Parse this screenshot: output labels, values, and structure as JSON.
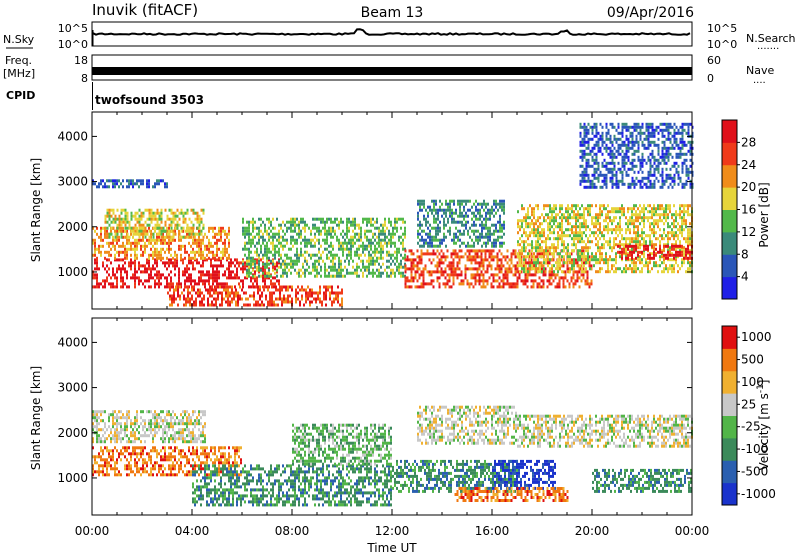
{
  "header": {
    "station": "Inuvik (fitACF)",
    "beam": "Beam 13",
    "date": "09/Apr/2016"
  },
  "side_labels": {
    "nsky": "N.Sky",
    "freq_line1": "Freq.",
    "freq_line2": "[MHz]",
    "cpid": "CPID",
    "nsearch": "N.Search",
    "nave": "Nave",
    "dots_long": "·······",
    "dots_short": "····"
  },
  "noise_panel": {
    "left_ticks": [
      "10^5",
      "10^0"
    ],
    "right_ticks": [
      "10^5",
      "10^0"
    ]
  },
  "freq_panel": {
    "left_ticks": [
      "18",
      "8"
    ],
    "right_ticks": [
      "60",
      "0"
    ]
  },
  "cpid_panel": {
    "text": "twofsound 3503"
  },
  "chart_data": [
    {
      "type": "heatmap",
      "title": "",
      "xlabel": "Time UT",
      "ylabel": "Slant Range [km]",
      "x_ticks": [
        "00:00",
        "04:00",
        "08:00",
        "12:00",
        "16:00",
        "20:00",
        "00:00"
      ],
      "x_range_hours": [
        0,
        24
      ],
      "y_ticks": [
        "1000",
        "2000",
        "3000",
        "4000"
      ],
      "ylim": [
        180,
        4540
      ],
      "colorbar_label": "Power [dB]",
      "colorbar_ticks": [
        "4",
        "8",
        "12",
        "16",
        "20",
        "24",
        "28"
      ],
      "colorbar_range": [
        0,
        32
      ],
      "colors": [
        "#1f1fe6",
        "#2a56b8",
        "#3a8a7a",
        "#52b84a",
        "#e6d43a",
        "#f08c1a",
        "#f03a1a",
        "#e0101a"
      ],
      "regions": [
        {
          "t": [
            0.0,
            7.5
          ],
          "r": [
            700,
            1300
          ],
          "level": 7
        },
        {
          "t": [
            0.0,
            5.5
          ],
          "r": [
            1300,
            2000
          ],
          "level": 5
        },
        {
          "t": [
            0.5,
            4.5
          ],
          "r": [
            1800,
            2400
          ],
          "level": 4
        },
        {
          "t": [
            0.0,
            3.0
          ],
          "r": [
            2900,
            3050
          ],
          "level": 1
        },
        {
          "t": [
            3.0,
            10.0
          ],
          "r": [
            300,
            700
          ],
          "level": 6
        },
        {
          "t": [
            6.0,
            12.5
          ],
          "r": [
            900,
            2200
          ],
          "level": 3
        },
        {
          "t": [
            12.5,
            20.0
          ],
          "r": [
            700,
            1500
          ],
          "level": 6
        },
        {
          "t": [
            13.0,
            16.5
          ],
          "r": [
            1600,
            2600
          ],
          "level": 2
        },
        {
          "t": [
            17.0,
            24.0
          ],
          "r": [
            1000,
            2500
          ],
          "level": 4
        },
        {
          "t": [
            21.0,
            24.0
          ],
          "r": [
            1300,
            1600
          ],
          "level": 7
        },
        {
          "t": [
            19.5,
            24.0
          ],
          "r": [
            2900,
            4300
          ],
          "level": 1
        }
      ]
    },
    {
      "type": "heatmap",
      "title": "",
      "xlabel": "Time UT",
      "ylabel": "Slant Range [km]",
      "x_ticks": [
        "00:00",
        "04:00",
        "08:00",
        "12:00",
        "16:00",
        "20:00",
        "00:00"
      ],
      "x_range_hours": [
        0,
        24
      ],
      "y_ticks": [
        "1000",
        "2000",
        "3000",
        "4000"
      ],
      "ylim": [
        180,
        4540
      ],
      "colorbar_label": "Velocity [m s^-1]",
      "colorbar_ticks": [
        "1000",
        "500",
        "100",
        "25",
        "-25",
        "-100",
        "-500",
        "-1000"
      ],
      "colorbar_range": [
        -1000,
        1000
      ],
      "colors": [
        "#1a33cc",
        "#2a5fb0",
        "#3b8a5a",
        "#52b548",
        "#c8c8c8",
        "#f0b030",
        "#f07810",
        "#e01010"
      ],
      "regions": [
        {
          "t": [
            0.0,
            6.0
          ],
          "r": [
            1100,
            1700
          ],
          "level": 6
        },
        {
          "t": [
            0.0,
            4.5
          ],
          "r": [
            1800,
            2500
          ],
          "level": 4
        },
        {
          "t": [
            4.0,
            12.0
          ],
          "r": [
            400,
            1300
          ],
          "level": 2
        },
        {
          "t": [
            8.0,
            12.0
          ],
          "r": [
            1300,
            2200
          ],
          "level": 3
        },
        {
          "t": [
            12.0,
            17.0
          ],
          "r": [
            700,
            1400
          ],
          "level": 2
        },
        {
          "t": [
            16.0,
            18.5
          ],
          "r": [
            800,
            1400
          ],
          "level": 0
        },
        {
          "t": [
            13.0,
            17.0
          ],
          "r": [
            1800,
            2600
          ],
          "level": 4
        },
        {
          "t": [
            14.5,
            19.0
          ],
          "r": [
            500,
            800
          ],
          "level": 6
        },
        {
          "t": [
            17.0,
            24.0
          ],
          "r": [
            1700,
            2400
          ],
          "level": 4
        },
        {
          "t": [
            20.0,
            24.0
          ],
          "r": [
            700,
            1200
          ],
          "level": 2
        }
      ]
    }
  ]
}
